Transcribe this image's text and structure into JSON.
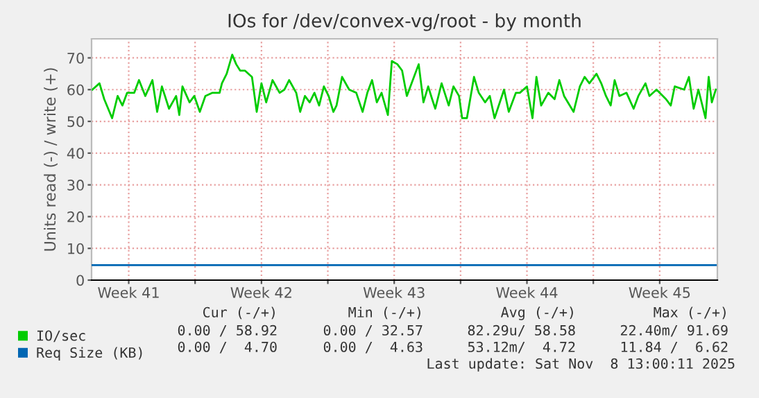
{
  "chart_data": {
    "type": "line",
    "title": "IOs for /dev/convex-vg/root - by month",
    "ylabel": "Units read (-) / write (+)",
    "xlim": [
      "2025-10-06T13:00",
      "2025-11-08T13:00"
    ],
    "ylim": [
      0,
      76
    ],
    "xticks": [
      {
        "value": "2025-10-08T12:00",
        "label": "Week 41"
      },
      {
        "value": "2025-10-12T00:00",
        "label": null
      },
      {
        "value": "2025-10-15T12:00",
        "label": "Week 42"
      },
      {
        "value": "2025-10-19T00:00",
        "label": null
      },
      {
        "value": "2025-10-22T12:00",
        "label": "Week 43"
      },
      {
        "value": "2025-10-26T00:00",
        "label": null
      },
      {
        "value": "2025-10-29T12:00",
        "label": "Week 44"
      },
      {
        "value": "2025-11-02T00:00",
        "label": null
      },
      {
        "value": "2025-11-05T12:00",
        "label": "Week 45"
      }
    ],
    "yticks": [
      0,
      10,
      20,
      30,
      40,
      50,
      60,
      70
    ],
    "grid": true,
    "legend": "bottom",
    "marker": "none",
    "line_style": "solid",
    "series": [
      {
        "name": "IO/sec",
        "color": "#00cc00",
        "x": [
          "2025-10-06T14:00",
          "2025-10-06T23:00",
          "2025-10-07T05:00",
          "2025-10-07T15:00",
          "2025-10-07T22:00",
          "2025-10-08T04:00",
          "2025-10-08T10:00",
          "2025-10-08T19:00",
          "2025-10-09T01:00",
          "2025-10-09T09:00",
          "2025-10-09T18:00",
          "2025-10-10T00:00",
          "2025-10-10T06:00",
          "2025-10-10T15:00",
          "2025-10-11T00:00",
          "2025-10-11T04:00",
          "2025-10-11T08:00",
          "2025-10-11T17:00",
          "2025-10-11T23:00",
          "2025-10-12T06:00",
          "2025-10-12T13:00",
          "2025-10-12T22:00",
          "2025-10-13T07:00",
          "2025-10-13T10:00",
          "2025-10-13T16:00",
          "2025-10-13T23:00",
          "2025-10-14T04:00",
          "2025-10-14T09:00",
          "2025-10-14T15:00",
          "2025-10-15T00:00",
          "2025-10-15T06:00",
          "2025-10-15T12:00",
          "2025-10-15T18:00",
          "2025-10-16T02:00",
          "2025-10-16T11:00",
          "2025-10-16T17:00",
          "2025-10-16T23:00",
          "2025-10-17T08:00",
          "2025-10-17T13:00",
          "2025-10-17T19:00",
          "2025-10-18T01:00",
          "2025-10-18T07:00",
          "2025-10-18T13:00",
          "2025-10-18T19:00",
          "2025-10-19T01:00",
          "2025-10-19T07:00",
          "2025-10-19T11:00",
          "2025-10-19T18:00",
          "2025-10-20T03:00",
          "2025-10-20T12:00",
          "2025-10-20T20:00",
          "2025-10-21T02:00",
          "2025-10-21T08:00",
          "2025-10-21T14:00",
          "2025-10-21T20:00",
          "2025-10-22T04:00",
          "2025-10-22T09:00",
          "2025-10-22T16:00",
          "2025-10-22T22:00",
          "2025-10-23T04:00",
          "2025-10-23T13:00",
          "2025-10-23T19:00",
          "2025-10-24T01:00",
          "2025-10-24T07:00",
          "2025-10-24T12:00",
          "2025-10-24T16:00",
          "2025-10-25T00:00",
          "2025-10-25T09:00",
          "2025-10-25T15:00",
          "2025-10-25T22:00",
          "2025-10-26T02:00",
          "2025-10-26T08:00",
          "2025-10-26T17:00",
          "2025-10-26T23:00",
          "2025-10-27T07:00",
          "2025-10-27T13:00",
          "2025-10-27T19:00",
          "2025-10-28T07:00",
          "2025-10-28T13:00",
          "2025-10-28T22:00",
          "2025-10-29T03:00",
          "2025-10-29T12:00",
          "2025-10-29T19:00",
          "2025-10-30T00:00",
          "2025-10-30T06:00",
          "2025-10-30T15:00",
          "2025-10-30T23:00",
          "2025-10-31T05:00",
          "2025-10-31T11:00",
          "2025-10-31T23:00",
          "2025-11-01T07:00",
          "2025-11-01T13:00",
          "2025-11-01T19:00",
          "2025-11-02T04:00",
          "2025-11-02T10:00",
          "2025-11-02T16:00",
          "2025-11-02T22:00",
          "2025-11-03T03:00",
          "2025-11-03T09:00",
          "2025-11-03T18:00",
          "2025-11-04T03:00",
          "2025-11-04T09:00",
          "2025-11-04T18:00",
          "2025-11-04T23:00",
          "2025-11-05T08:00",
          "2025-11-05T20:00",
          "2025-11-06T02:00",
          "2025-11-06T07:00",
          "2025-11-06T19:00",
          "2025-11-07T01:00",
          "2025-11-07T07:00",
          "2025-11-07T13:00",
          "2025-11-07T22:00",
          "2025-11-08T02:00",
          "2025-11-08T06:00",
          "2025-11-08T11:00"
        ],
        "values": [
          60,
          62,
          57,
          51,
          58,
          55,
          59,
          59,
          63,
          58,
          63,
          53,
          61,
          54,
          58,
          52,
          61,
          56,
          58,
          53,
          58,
          59,
          59,
          62,
          65,
          71,
          68,
          66,
          66,
          64,
          53,
          62,
          56,
          63,
          59,
          60,
          63,
          59,
          53,
          58,
          56,
          59,
          55,
          61,
          58,
          53,
          55,
          64,
          60,
          59,
          53,
          59,
          63,
          56,
          59,
          52,
          69,
          68,
          66,
          58,
          64,
          68,
          56,
          61,
          57,
          54,
          62,
          55,
          61,
          58,
          51,
          51,
          64,
          59,
          56,
          58,
          51,
          60,
          53,
          59,
          59,
          61,
          51,
          64,
          55,
          59,
          57,
          63,
          58,
          53,
          61,
          64,
          62,
          65,
          62,
          58,
          55,
          63,
          58,
          59,
          54,
          58,
          62,
          58,
          60,
          57,
          55,
          61,
          60,
          64,
          54,
          60,
          51,
          64,
          56,
          60
        ]
      },
      {
        "name": "Req Size (KB)",
        "color": "#0066b3",
        "x": [
          "2025-10-06T14:00",
          "2025-11-08T11:00"
        ],
        "values": [
          4.7,
          4.7
        ]
      }
    ],
    "annotations": [
      "Cur (-/+)",
      "Min (-/+)",
      "Avg (-/+)",
      "Max (-/+)",
      "0.00 / 58.92",
      "0.00 / 32.57",
      "82.29u/ 58.58",
      "22.40m/ 91.69",
      "0.00 /  4.70",
      "0.00 /  4.63",
      "53.12m/  4.72",
      "11.84 /  6.62",
      "Last update: Sat Nov  8 13:00:11 2025"
    ]
  }
}
